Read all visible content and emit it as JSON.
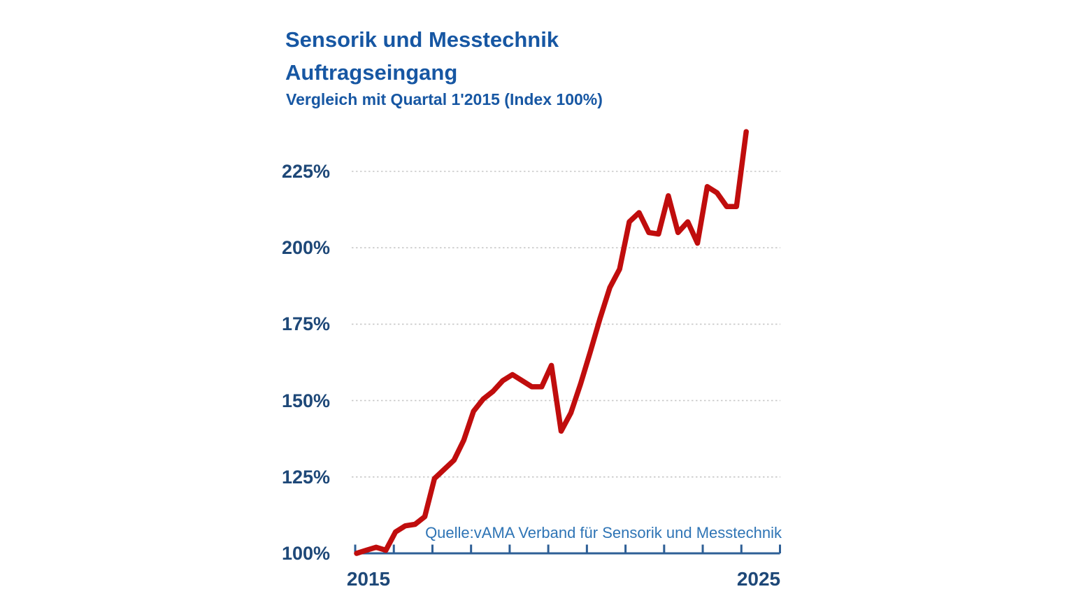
{
  "header": {
    "title_line1": "Sensorik und Messtechnik",
    "title_line2": "Auftragseingang",
    "subtitle": "Vergleich mit Quartal 1'2015 (Index 100%)"
  },
  "source": {
    "text": "Quelle:vAMA Verband für Sensorik und Messtechnik"
  },
  "chart_data": {
    "type": "line",
    "title": "Sensorik und Messtechnik Auftragseingang",
    "subtitle": "Vergleich mit Quartal 1'2015 (Index 100%)",
    "unit": "percent index, Q1 2015 = 100%",
    "frequency": "quarterly",
    "x_start": "2015 Q1",
    "x_end": "2025 Q1",
    "x": [
      "2015-Q1",
      "2015-Q2",
      "2015-Q3",
      "2015-Q4",
      "2016-Q1",
      "2016-Q2",
      "2016-Q3",
      "2016-Q4",
      "2017-Q1",
      "2017-Q2",
      "2017-Q3",
      "2017-Q4",
      "2018-Q1",
      "2018-Q2",
      "2018-Q3",
      "2018-Q4",
      "2019-Q1",
      "2019-Q2",
      "2019-Q3",
      "2019-Q4",
      "2020-Q1",
      "2020-Q2",
      "2020-Q3",
      "2020-Q4",
      "2021-Q1",
      "2021-Q2",
      "2021-Q3",
      "2021-Q4",
      "2022-Q1",
      "2022-Q2",
      "2022-Q3",
      "2022-Q4",
      "2023-Q1",
      "2023-Q2",
      "2023-Q3",
      "2023-Q4",
      "2024-Q1",
      "2024-Q2",
      "2024-Q3",
      "2024-Q4",
      "2025-Q1"
    ],
    "values": [
      100,
      101,
      102,
      101,
      107,
      109,
      109.5,
      112,
      124.5,
      127.5,
      130.5,
      137,
      146.5,
      150.5,
      153,
      156.5,
      158.5,
      156.5,
      154.5,
      154.5,
      161.5,
      140,
      146,
      155.5,
      166,
      177,
      187,
      193,
      208.5,
      211.5,
      205,
      204.5,
      217,
      205,
      208.5,
      201.5,
      220,
      218,
      213.5,
      213.5,
      238
    ],
    "ylim": [
      100,
      240
    ],
    "yticks": [
      225,
      200,
      175,
      150,
      125,
      100
    ],
    "ytick_labels": [
      "225%",
      "200%",
      "175%",
      "150%",
      "125%",
      "100%"
    ],
    "xtick_labels": [
      "2015",
      "2025"
    ],
    "grid": "horizontal dotted, no gridline at 100%",
    "legend": "none",
    "colors": {
      "line": "#c00d0d",
      "title": "#1757a3",
      "tick_labels": "#1e4878",
      "source_text": "#2e74b5",
      "axis": "#2e5f96",
      "grid": "#c8c8c8",
      "background": "#ffffff"
    }
  }
}
